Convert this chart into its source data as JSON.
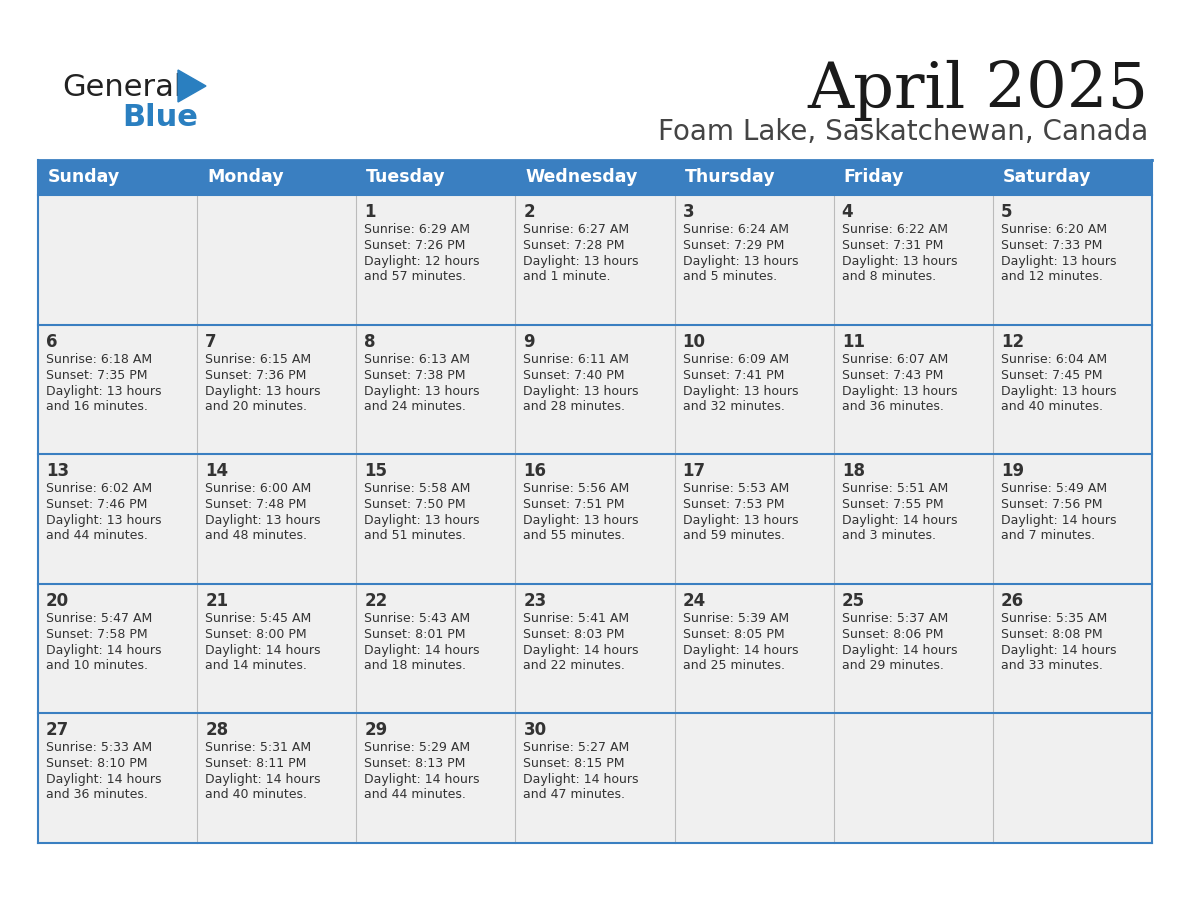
{
  "title": "April 2025",
  "subtitle": "Foam Lake, Saskatchewan, Canada",
  "header_bg": "#3a7fc1",
  "header_text_color": "#ffffff",
  "cell_bg": "#f0f0f0",
  "row_line_color": "#3a7fc1",
  "col_line_color": "#bbbbbb",
  "text_color": "#333333",
  "day_names": [
    "Sunday",
    "Monday",
    "Tuesday",
    "Wednesday",
    "Thursday",
    "Friday",
    "Saturday"
  ],
  "weeks": [
    [
      {
        "day": "",
        "sunrise": "",
        "sunset": "",
        "daylight": ""
      },
      {
        "day": "",
        "sunrise": "",
        "sunset": "",
        "daylight": ""
      },
      {
        "day": "1",
        "sunrise": "Sunrise: 6:29 AM",
        "sunset": "Sunset: 7:26 PM",
        "daylight": "Daylight: 12 hours\nand 57 minutes."
      },
      {
        "day": "2",
        "sunrise": "Sunrise: 6:27 AM",
        "sunset": "Sunset: 7:28 PM",
        "daylight": "Daylight: 13 hours\nand 1 minute."
      },
      {
        "day": "3",
        "sunrise": "Sunrise: 6:24 AM",
        "sunset": "Sunset: 7:29 PM",
        "daylight": "Daylight: 13 hours\nand 5 minutes."
      },
      {
        "day": "4",
        "sunrise": "Sunrise: 6:22 AM",
        "sunset": "Sunset: 7:31 PM",
        "daylight": "Daylight: 13 hours\nand 8 minutes."
      },
      {
        "day": "5",
        "sunrise": "Sunrise: 6:20 AM",
        "sunset": "Sunset: 7:33 PM",
        "daylight": "Daylight: 13 hours\nand 12 minutes."
      }
    ],
    [
      {
        "day": "6",
        "sunrise": "Sunrise: 6:18 AM",
        "sunset": "Sunset: 7:35 PM",
        "daylight": "Daylight: 13 hours\nand 16 minutes."
      },
      {
        "day": "7",
        "sunrise": "Sunrise: 6:15 AM",
        "sunset": "Sunset: 7:36 PM",
        "daylight": "Daylight: 13 hours\nand 20 minutes."
      },
      {
        "day": "8",
        "sunrise": "Sunrise: 6:13 AM",
        "sunset": "Sunset: 7:38 PM",
        "daylight": "Daylight: 13 hours\nand 24 minutes."
      },
      {
        "day": "9",
        "sunrise": "Sunrise: 6:11 AM",
        "sunset": "Sunset: 7:40 PM",
        "daylight": "Daylight: 13 hours\nand 28 minutes."
      },
      {
        "day": "10",
        "sunrise": "Sunrise: 6:09 AM",
        "sunset": "Sunset: 7:41 PM",
        "daylight": "Daylight: 13 hours\nand 32 minutes."
      },
      {
        "day": "11",
        "sunrise": "Sunrise: 6:07 AM",
        "sunset": "Sunset: 7:43 PM",
        "daylight": "Daylight: 13 hours\nand 36 minutes."
      },
      {
        "day": "12",
        "sunrise": "Sunrise: 6:04 AM",
        "sunset": "Sunset: 7:45 PM",
        "daylight": "Daylight: 13 hours\nand 40 minutes."
      }
    ],
    [
      {
        "day": "13",
        "sunrise": "Sunrise: 6:02 AM",
        "sunset": "Sunset: 7:46 PM",
        "daylight": "Daylight: 13 hours\nand 44 minutes."
      },
      {
        "day": "14",
        "sunrise": "Sunrise: 6:00 AM",
        "sunset": "Sunset: 7:48 PM",
        "daylight": "Daylight: 13 hours\nand 48 minutes."
      },
      {
        "day": "15",
        "sunrise": "Sunrise: 5:58 AM",
        "sunset": "Sunset: 7:50 PM",
        "daylight": "Daylight: 13 hours\nand 51 minutes."
      },
      {
        "day": "16",
        "sunrise": "Sunrise: 5:56 AM",
        "sunset": "Sunset: 7:51 PM",
        "daylight": "Daylight: 13 hours\nand 55 minutes."
      },
      {
        "day": "17",
        "sunrise": "Sunrise: 5:53 AM",
        "sunset": "Sunset: 7:53 PM",
        "daylight": "Daylight: 13 hours\nand 59 minutes."
      },
      {
        "day": "18",
        "sunrise": "Sunrise: 5:51 AM",
        "sunset": "Sunset: 7:55 PM",
        "daylight": "Daylight: 14 hours\nand 3 minutes."
      },
      {
        "day": "19",
        "sunrise": "Sunrise: 5:49 AM",
        "sunset": "Sunset: 7:56 PM",
        "daylight": "Daylight: 14 hours\nand 7 minutes."
      }
    ],
    [
      {
        "day": "20",
        "sunrise": "Sunrise: 5:47 AM",
        "sunset": "Sunset: 7:58 PM",
        "daylight": "Daylight: 14 hours\nand 10 minutes."
      },
      {
        "day": "21",
        "sunrise": "Sunrise: 5:45 AM",
        "sunset": "Sunset: 8:00 PM",
        "daylight": "Daylight: 14 hours\nand 14 minutes."
      },
      {
        "day": "22",
        "sunrise": "Sunrise: 5:43 AM",
        "sunset": "Sunset: 8:01 PM",
        "daylight": "Daylight: 14 hours\nand 18 minutes."
      },
      {
        "day": "23",
        "sunrise": "Sunrise: 5:41 AM",
        "sunset": "Sunset: 8:03 PM",
        "daylight": "Daylight: 14 hours\nand 22 minutes."
      },
      {
        "day": "24",
        "sunrise": "Sunrise: 5:39 AM",
        "sunset": "Sunset: 8:05 PM",
        "daylight": "Daylight: 14 hours\nand 25 minutes."
      },
      {
        "day": "25",
        "sunrise": "Sunrise: 5:37 AM",
        "sunset": "Sunset: 8:06 PM",
        "daylight": "Daylight: 14 hours\nand 29 minutes."
      },
      {
        "day": "26",
        "sunrise": "Sunrise: 5:35 AM",
        "sunset": "Sunset: 8:08 PM",
        "daylight": "Daylight: 14 hours\nand 33 minutes."
      }
    ],
    [
      {
        "day": "27",
        "sunrise": "Sunrise: 5:33 AM",
        "sunset": "Sunset: 8:10 PM",
        "daylight": "Daylight: 14 hours\nand 36 minutes."
      },
      {
        "day": "28",
        "sunrise": "Sunrise: 5:31 AM",
        "sunset": "Sunset: 8:11 PM",
        "daylight": "Daylight: 14 hours\nand 40 minutes."
      },
      {
        "day": "29",
        "sunrise": "Sunrise: 5:29 AM",
        "sunset": "Sunset: 8:13 PM",
        "daylight": "Daylight: 14 hours\nand 44 minutes."
      },
      {
        "day": "30",
        "sunrise": "Sunrise: 5:27 AM",
        "sunset": "Sunset: 8:15 PM",
        "daylight": "Daylight: 14 hours\nand 47 minutes."
      },
      {
        "day": "",
        "sunrise": "",
        "sunset": "",
        "daylight": ""
      },
      {
        "day": "",
        "sunrise": "",
        "sunset": "",
        "daylight": ""
      },
      {
        "day": "",
        "sunrise": "",
        "sunset": "",
        "daylight": ""
      }
    ]
  ],
  "logo_color_general": "#222222",
  "logo_color_blue": "#2a7fc0"
}
